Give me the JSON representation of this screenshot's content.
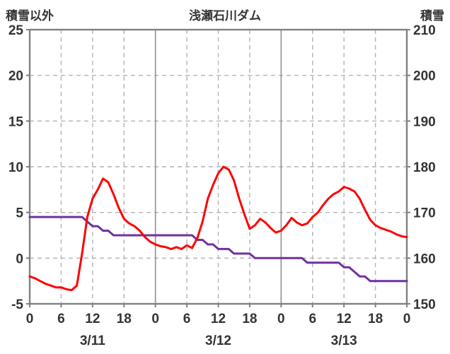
{
  "header": {
    "left_axis_title": "積雪以外",
    "chart_title": "浅瀬石川ダム",
    "right_axis_title": "積雪"
  },
  "colors": {
    "red_series": "#ff0000",
    "purple_series": "#7030a0",
    "border": "#808080",
    "solid_grid": "#909090",
    "dashed_grid": "#b3b3b3",
    "tick_text": "#333333"
  },
  "chart_data": {
    "type": "line",
    "title": "浅瀬石川ダム",
    "grid": true,
    "legend": "none",
    "left_axis": {
      "label": "積雪以外",
      "min": -5,
      "max": 25,
      "ticks": [
        25,
        20,
        15,
        10,
        5,
        0,
        -5
      ]
    },
    "right_axis": {
      "label": "積雪",
      "min": 150,
      "max": 210,
      "ticks": [
        210,
        200,
        190,
        180,
        170,
        160,
        150
      ]
    },
    "x_axis": {
      "hours_total": 72,
      "tick_interval_hours": 6,
      "hour_tick_labels": [
        "0",
        "6",
        "12",
        "18",
        "0",
        "6",
        "12",
        "18",
        "0",
        "6",
        "12",
        "18",
        "0"
      ],
      "date_labels": [
        "3/11",
        "3/12",
        "3/13"
      ],
      "date_label_hours": [
        12,
        36,
        60
      ]
    },
    "series": [
      {
        "name": "積雪以外",
        "axis": "left",
        "color": "#ff0000",
        "x_step_hours": 1,
        "values": [
          -2.0,
          -2.2,
          -2.5,
          -2.8,
          -3.0,
          -3.2,
          -3.2,
          -3.4,
          -3.5,
          -3.0,
          0.5,
          4.5,
          6.5,
          7.5,
          8.7,
          8.3,
          7.0,
          5.5,
          4.3,
          3.8,
          3.5,
          3.0,
          2.3,
          1.8,
          1.5,
          1.3,
          1.2,
          1.0,
          1.2,
          1.0,
          1.4,
          1.1,
          2.2,
          4.0,
          6.5,
          8.0,
          9.3,
          10.0,
          9.7,
          8.5,
          6.5,
          4.8,
          3.2,
          3.6,
          4.3,
          3.9,
          3.3,
          2.8,
          3.0,
          3.6,
          4.4,
          3.9,
          3.6,
          3.8,
          4.5,
          5.0,
          5.8,
          6.5,
          7.0,
          7.3,
          7.8,
          7.6,
          7.3,
          6.5,
          5.3,
          4.2,
          3.6,
          3.3,
          3.1,
          2.9,
          2.6,
          2.4,
          2.3
        ]
      },
      {
        "name": "積雪",
        "axis": "right",
        "color": "#7030a0",
        "x_step_hours": 1,
        "values": [
          169,
          169,
          169,
          169,
          169,
          169,
          169,
          169,
          169,
          169,
          169,
          168,
          167,
          167,
          166,
          166,
          165,
          165,
          165,
          165,
          165,
          165,
          165,
          165,
          165,
          165,
          165,
          165,
          165,
          165,
          165,
          165,
          164,
          164,
          163,
          163,
          162,
          162,
          162,
          161,
          161,
          161,
          161,
          160,
          160,
          160,
          160,
          160,
          160,
          160,
          160,
          160,
          160,
          159,
          159,
          159,
          159,
          159,
          159,
          159,
          158,
          158,
          157,
          156,
          156,
          155,
          155,
          155,
          155,
          155,
          155,
          155,
          155
        ]
      }
    ]
  }
}
